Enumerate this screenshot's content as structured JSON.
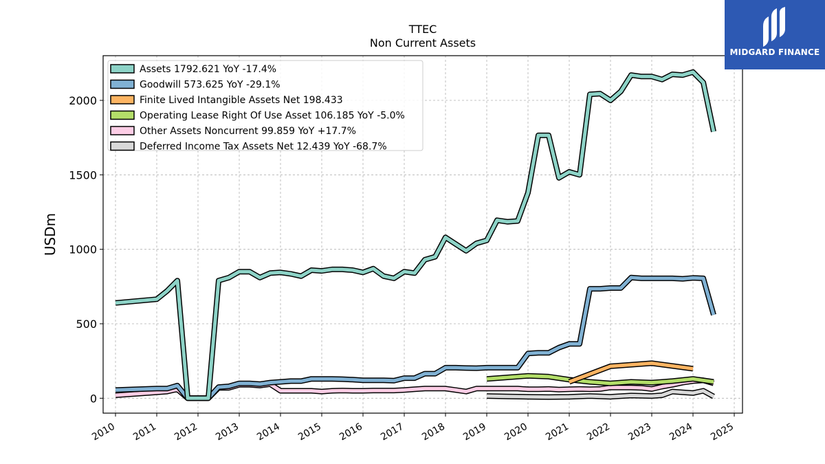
{
  "logo": {
    "text": "MIDGARD FINANCE",
    "color": "#2d59b3"
  },
  "chart_data": {
    "type": "line",
    "title": "TTEC",
    "subtitle": "Non Current  Assets",
    "ylabel": "USDm",
    "xlabel": "",
    "xlim": [
      2009.7,
      2025.2
    ],
    "ylim": [
      -100,
      2300
    ],
    "grid": true,
    "legend_placement": "top-left",
    "xticks": [
      "2010",
      "2011",
      "2012",
      "2013",
      "2014",
      "2015",
      "2016",
      "2017",
      "2018",
      "2019",
      "2020",
      "2021",
      "2022",
      "2023",
      "2024",
      "2025"
    ],
    "yticks": [
      "0",
      "500",
      "1000",
      "1500",
      "2000"
    ],
    "series": [
      {
        "name": "Assets  1792.621 YoY -17.4%",
        "color": "#8dd3c7",
        "points": [
          [
            2010.0,
            640
          ],
          [
            2011.0,
            665
          ],
          [
            2011.25,
            720
          ],
          [
            2011.5,
            790
          ],
          [
            2011.75,
            0
          ],
          [
            2012.0,
            0
          ],
          [
            2012.25,
            0
          ],
          [
            2012.5,
            790
          ],
          [
            2012.75,
            810
          ],
          [
            2013.0,
            850
          ],
          [
            2013.25,
            850
          ],
          [
            2013.5,
            810
          ],
          [
            2013.75,
            840
          ],
          [
            2014.0,
            845
          ],
          [
            2014.25,
            835
          ],
          [
            2014.5,
            820
          ],
          [
            2014.75,
            860
          ],
          [
            2015.0,
            855
          ],
          [
            2015.25,
            865
          ],
          [
            2015.5,
            865
          ],
          [
            2015.75,
            860
          ],
          [
            2016.0,
            845
          ],
          [
            2016.25,
            870
          ],
          [
            2016.5,
            820
          ],
          [
            2016.75,
            805
          ],
          [
            2017.0,
            850
          ],
          [
            2017.25,
            840
          ],
          [
            2017.5,
            930
          ],
          [
            2017.75,
            950
          ],
          [
            2018.0,
            1080
          ],
          [
            2018.25,
            1035
          ],
          [
            2018.5,
            990
          ],
          [
            2018.75,
            1040
          ],
          [
            2019.0,
            1060
          ],
          [
            2019.25,
            1195
          ],
          [
            2019.5,
            1185
          ],
          [
            2019.75,
            1190
          ],
          [
            2020.0,
            1380
          ],
          [
            2020.25,
            1765
          ],
          [
            2020.5,
            1765
          ],
          [
            2020.75,
            1480
          ],
          [
            2021.0,
            1520
          ],
          [
            2021.25,
            1500
          ],
          [
            2021.5,
            2040
          ],
          [
            2021.75,
            2045
          ],
          [
            2022.0,
            2000
          ],
          [
            2022.25,
            2060
          ],
          [
            2022.5,
            2170
          ],
          [
            2022.75,
            2160
          ],
          [
            2023.0,
            2160
          ],
          [
            2023.25,
            2140
          ],
          [
            2023.5,
            2175
          ],
          [
            2023.75,
            2170
          ],
          [
            2024.0,
            2190
          ],
          [
            2024.25,
            2120
          ],
          [
            2024.5,
            1790
          ]
        ]
      },
      {
        "name": "Goodwill  573.625 YoY -29.1%",
        "color": "#80b1d3",
        "points": [
          [
            2010.0,
            55
          ],
          [
            2011.0,
            65
          ],
          [
            2011.25,
            65
          ],
          [
            2011.5,
            85
          ],
          [
            2011.75,
            0
          ],
          [
            2012.0,
            0
          ],
          [
            2012.25,
            0
          ],
          [
            2012.5,
            75
          ],
          [
            2012.75,
            80
          ],
          [
            2013.0,
            100
          ],
          [
            2013.25,
            100
          ],
          [
            2013.5,
            95
          ],
          [
            2013.75,
            105
          ],
          [
            2014.0,
            110
          ],
          [
            2014.25,
            115
          ],
          [
            2014.5,
            115
          ],
          [
            2014.75,
            130
          ],
          [
            2015.0,
            130
          ],
          [
            2015.25,
            130
          ],
          [
            2015.5,
            128
          ],
          [
            2015.75,
            125
          ],
          [
            2016.0,
            120
          ],
          [
            2016.25,
            120
          ],
          [
            2016.5,
            120
          ],
          [
            2016.75,
            118
          ],
          [
            2017.0,
            135
          ],
          [
            2017.25,
            135
          ],
          [
            2017.5,
            165
          ],
          [
            2017.75,
            165
          ],
          [
            2018.0,
            205
          ],
          [
            2018.25,
            205
          ],
          [
            2018.5,
            203
          ],
          [
            2018.75,
            202
          ],
          [
            2019.0,
            205
          ],
          [
            2019.25,
            205
          ],
          [
            2019.5,
            205
          ],
          [
            2019.75,
            205
          ],
          [
            2020.0,
            300
          ],
          [
            2020.25,
            305
          ],
          [
            2020.5,
            305
          ],
          [
            2020.75,
            340
          ],
          [
            2021.0,
            365
          ],
          [
            2021.25,
            365
          ],
          [
            2021.5,
            735
          ],
          [
            2021.75,
            735
          ],
          [
            2022.0,
            740
          ],
          [
            2022.25,
            740
          ],
          [
            2022.5,
            810
          ],
          [
            2022.75,
            805
          ],
          [
            2023.0,
            805
          ],
          [
            2023.25,
            805
          ],
          [
            2023.5,
            805
          ],
          [
            2023.75,
            802
          ],
          [
            2024.0,
            808
          ],
          [
            2024.25,
            805
          ],
          [
            2024.5,
            560
          ]
        ]
      },
      {
        "name": "Finite Lived Intangible Assets Net  198.433",
        "color": "#fdb462",
        "points": [
          [
            2021.0,
            110
          ],
          [
            2022.0,
            215
          ],
          [
            2023.0,
            235
          ],
          [
            2024.0,
            198
          ]
        ]
      },
      {
        "name": "Operating Lease Right Of Use Asset  106.185 YoY -5.0%",
        "color": "#b3de69",
        "points": [
          [
            2019.0,
            130
          ],
          [
            2019.5,
            140
          ],
          [
            2020.0,
            150
          ],
          [
            2020.5,
            145
          ],
          [
            2021.0,
            125
          ],
          [
            2021.5,
            110
          ],
          [
            2022.0,
            100
          ],
          [
            2022.5,
            110
          ],
          [
            2023.0,
            105
          ],
          [
            2023.5,
            115
          ],
          [
            2024.0,
            130
          ],
          [
            2024.5,
            110
          ]
        ]
      },
      {
        "name": "Other Assets Noncurrent  99.859 YoY +17.7%",
        "color": "#fccde5",
        "points": [
          [
            2010.0,
            20
          ],
          [
            2011.0,
            40
          ],
          [
            2011.25,
            45
          ],
          [
            2011.5,
            60
          ],
          [
            2011.75,
            0
          ],
          [
            2012.0,
            0
          ],
          [
            2012.25,
            0
          ],
          [
            2012.5,
            70
          ],
          [
            2012.75,
            70
          ],
          [
            2013.0,
            90
          ],
          [
            2013.25,
            90
          ],
          [
            2013.5,
            85
          ],
          [
            2013.75,
            95
          ],
          [
            2014.0,
            50
          ],
          [
            2014.25,
            50
          ],
          [
            2014.5,
            50
          ],
          [
            2014.75,
            50
          ],
          [
            2015.0,
            45
          ],
          [
            2015.25,
            50
          ],
          [
            2015.5,
            52
          ],
          [
            2015.75,
            50
          ],
          [
            2016.0,
            50
          ],
          [
            2016.25,
            52
          ],
          [
            2016.5,
            52
          ],
          [
            2016.75,
            52
          ],
          [
            2017.0,
            55
          ],
          [
            2017.25,
            60
          ],
          [
            2017.5,
            65
          ],
          [
            2017.75,
            65
          ],
          [
            2018.0,
            65
          ],
          [
            2018.25,
            55
          ],
          [
            2018.5,
            45
          ],
          [
            2018.75,
            65
          ],
          [
            2019.0,
            65
          ],
          [
            2019.25,
            65
          ],
          [
            2019.5,
            65
          ],
          [
            2019.75,
            65
          ],
          [
            2020.0,
            60
          ],
          [
            2020.25,
            60
          ],
          [
            2020.5,
            62
          ],
          [
            2020.75,
            58
          ],
          [
            2021.0,
            60
          ],
          [
            2021.25,
            62
          ],
          [
            2021.5,
            60
          ],
          [
            2021.75,
            62
          ],
          [
            2022.0,
            72
          ],
          [
            2022.25,
            72
          ],
          [
            2022.5,
            72
          ],
          [
            2022.75,
            70
          ],
          [
            2023.0,
            62
          ],
          [
            2023.25,
            78
          ],
          [
            2023.5,
            90
          ],
          [
            2023.75,
            105
          ],
          [
            2024.0,
            115
          ],
          [
            2024.25,
            120
          ],
          [
            2024.5,
            100
          ]
        ]
      },
      {
        "name": "Deferred Income Tax Assets Net  12.439 YoY -68.7%",
        "color": "#d9d9d9",
        "points": [
          [
            2019.0,
            15
          ],
          [
            2019.5,
            12
          ],
          [
            2020.0,
            10
          ],
          [
            2020.5,
            8
          ],
          [
            2021.0,
            10
          ],
          [
            2021.5,
            15
          ],
          [
            2022.0,
            10
          ],
          [
            2022.5,
            18
          ],
          [
            2023.0,
            15
          ],
          [
            2023.25,
            20
          ],
          [
            2023.5,
            45
          ],
          [
            2023.75,
            40
          ],
          [
            2024.0,
            35
          ],
          [
            2024.25,
            50
          ],
          [
            2024.5,
            12
          ]
        ]
      }
    ]
  }
}
